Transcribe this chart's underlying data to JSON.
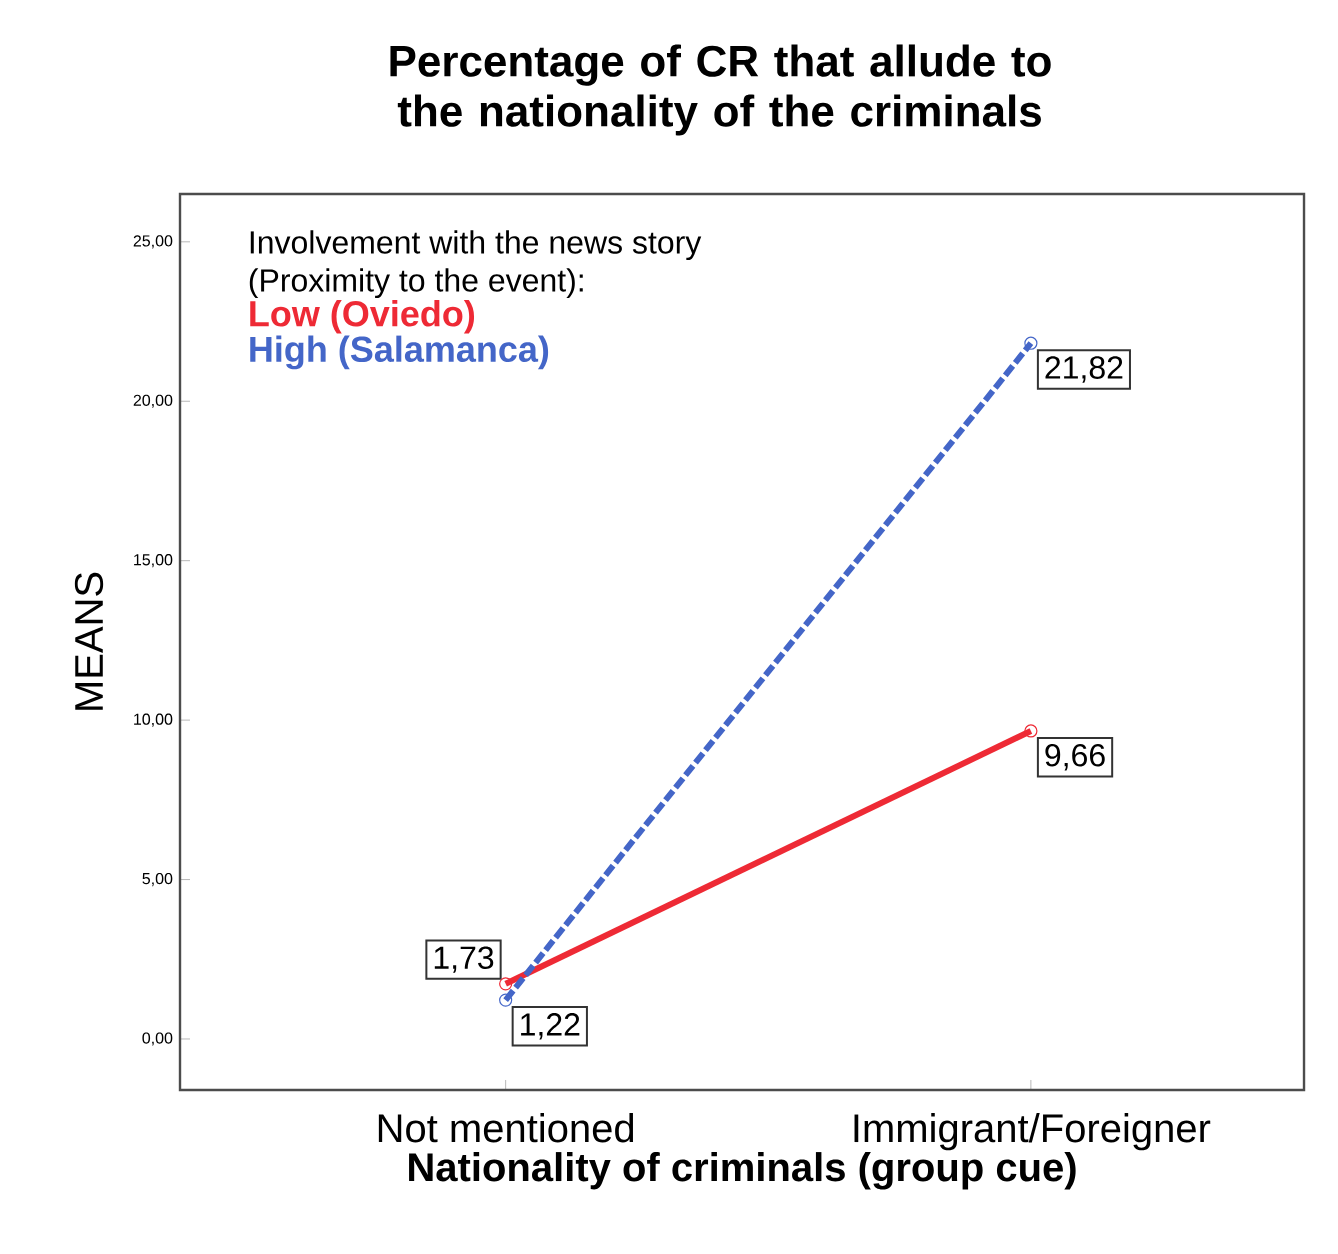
{
  "chart_data": {
    "type": "line",
    "title": "Percentage of CR that allude to the nationality of the criminals",
    "xlabel": "Nationality of criminals (group cue)",
    "ylabel": "MEANS",
    "legend_title": "Involvement with the news story (Proximity to the event):",
    "categories": [
      "Not mentioned",
      "Immigrant/Foreigner"
    ],
    "series": [
      {
        "name": "Low (Oviedo)",
        "color": "#ee2a35",
        "values": [
          1.73,
          9.66
        ],
        "value_labels": [
          "1,73",
          "9,66"
        ],
        "line_style": "solid"
      },
      {
        "name": "High (Salamanca)",
        "color": "#4466c8",
        "values": [
          1.22,
          21.82
        ],
        "value_labels": [
          "1,22",
          "21,82"
        ],
        "line_style": "dashed"
      }
    ],
    "ylim": [
      -1.6,
      26.5
    ],
    "yticks": [
      {
        "value": 0,
        "label": "0,00"
      },
      {
        "value": 5,
        "label": "5,00"
      },
      {
        "value": 10,
        "label": "10,00"
      },
      {
        "value": 15,
        "label": "15,00"
      },
      {
        "value": 20,
        "label": "20,00"
      },
      {
        "value": 25,
        "label": "25,00"
      }
    ],
    "grid": false,
    "legend": "top left",
    "marker": "circle"
  }
}
